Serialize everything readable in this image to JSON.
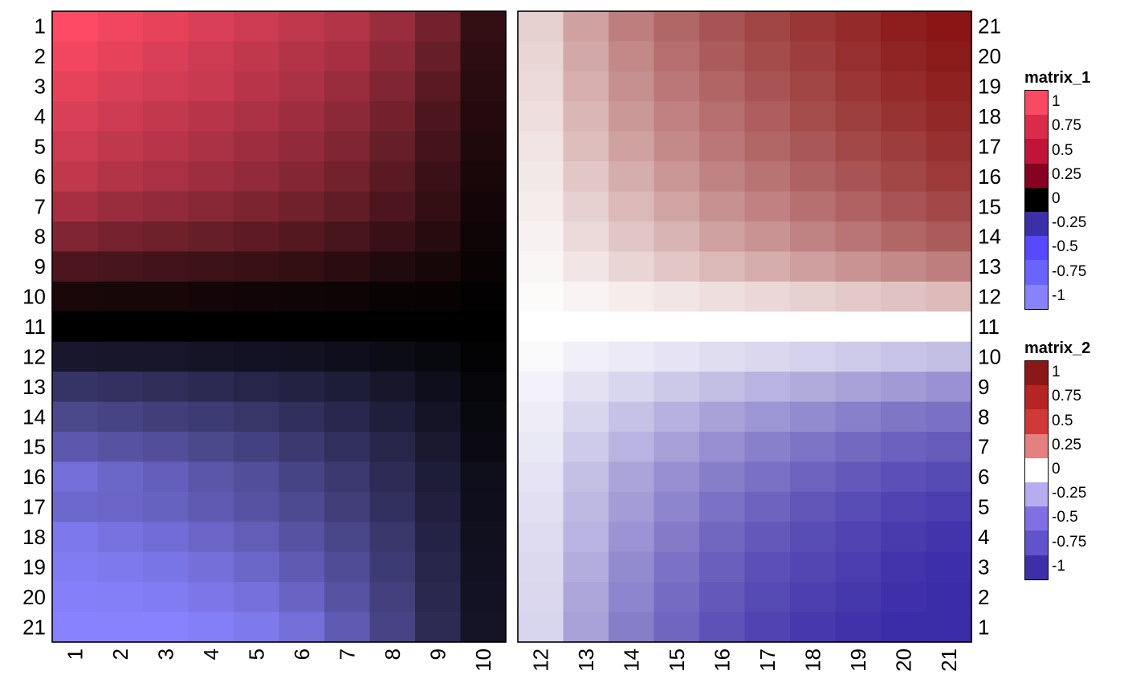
{
  "chart_data": {
    "type": "heatmap",
    "heatmaps": [
      {
        "name": "matrix_1",
        "row_labels": [
          "1",
          "2",
          "3",
          "4",
          "5",
          "6",
          "7",
          "8",
          "9",
          "10",
          "11",
          "12",
          "13",
          "14",
          "15",
          "16",
          "17",
          "18",
          "19",
          "20",
          "21"
        ],
        "row_label_side": "left",
        "column_labels": [
          "1",
          "2",
          "3",
          "4",
          "5",
          "6",
          "7",
          "8",
          "9",
          "10"
        ],
        "values": [
          [
            1.0,
            0.95,
            0.9,
            0.85,
            0.8,
            0.75,
            0.7,
            0.6,
            0.45,
            0.2
          ],
          [
            0.95,
            0.9,
            0.85,
            0.8,
            0.75,
            0.7,
            0.65,
            0.55,
            0.4,
            0.18
          ],
          [
            0.9,
            0.85,
            0.82,
            0.78,
            0.72,
            0.67,
            0.6,
            0.5,
            0.35,
            0.16
          ],
          [
            0.85,
            0.8,
            0.76,
            0.72,
            0.67,
            0.62,
            0.55,
            0.45,
            0.3,
            0.14
          ],
          [
            0.8,
            0.75,
            0.72,
            0.67,
            0.62,
            0.57,
            0.5,
            0.4,
            0.27,
            0.12
          ],
          [
            0.75,
            0.7,
            0.66,
            0.62,
            0.57,
            0.52,
            0.45,
            0.35,
            0.23,
            0.1
          ],
          [
            0.65,
            0.6,
            0.57,
            0.53,
            0.49,
            0.44,
            0.38,
            0.3,
            0.2,
            0.08
          ],
          [
            0.5,
            0.46,
            0.43,
            0.4,
            0.37,
            0.33,
            0.28,
            0.22,
            0.15,
            0.06
          ],
          [
            0.3,
            0.28,
            0.26,
            0.24,
            0.22,
            0.2,
            0.17,
            0.13,
            0.09,
            0.04
          ],
          [
            0.1,
            0.09,
            0.09,
            0.08,
            0.07,
            0.06,
            0.05,
            0.04,
            0.03,
            0.01
          ],
          [
            0,
            0,
            0,
            0,
            0,
            0,
            0,
            0,
            0,
            0
          ],
          [
            -0.18,
            -0.17,
            -0.16,
            -0.15,
            -0.14,
            -0.13,
            -0.11,
            -0.09,
            -0.06,
            -0.02
          ],
          [
            -0.4,
            -0.38,
            -0.35,
            -0.32,
            -0.29,
            -0.26,
            -0.22,
            -0.17,
            -0.11,
            -0.04
          ],
          [
            -0.55,
            -0.52,
            -0.48,
            -0.45,
            -0.41,
            -0.36,
            -0.3,
            -0.23,
            -0.15,
            -0.06
          ],
          [
            -0.68,
            -0.64,
            -0.6,
            -0.55,
            -0.5,
            -0.44,
            -0.37,
            -0.29,
            -0.19,
            -0.08
          ],
          [
            -0.85,
            -0.79,
            -0.73,
            -0.66,
            -0.6,
            -0.52,
            -0.44,
            -0.34,
            -0.22,
            -0.1
          ],
          [
            -0.8,
            -0.78,
            -0.75,
            -0.7,
            -0.64,
            -0.57,
            -0.48,
            -0.37,
            -0.24,
            -0.11
          ],
          [
            -0.92,
            -0.88,
            -0.84,
            -0.78,
            -0.72,
            -0.64,
            -0.54,
            -0.42,
            -0.27,
            -0.12
          ],
          [
            -0.95,
            -0.93,
            -0.9,
            -0.85,
            -0.79,
            -0.7,
            -0.59,
            -0.45,
            -0.29,
            -0.13
          ],
          [
            -0.98,
            -0.97,
            -0.95,
            -0.91,
            -0.86,
            -0.77,
            -0.64,
            -0.49,
            -0.31,
            -0.14
          ],
          [
            -1.0,
            -1.0,
            -1.0,
            -0.97,
            -0.93,
            -0.85,
            -0.7,
            -0.52,
            -0.33,
            -0.15
          ]
        ]
      },
      {
        "name": "matrix_2",
        "row_labels": [
          "21",
          "20",
          "19",
          "18",
          "17",
          "16",
          "15",
          "14",
          "13",
          "12",
          "11",
          "10",
          "9",
          "8",
          "7",
          "6",
          "5",
          "4",
          "3",
          "2",
          "1"
        ],
        "row_label_side": "right",
        "column_labels": [
          "12",
          "13",
          "14",
          "15",
          "16",
          "17",
          "18",
          "19",
          "20",
          "21"
        ],
        "values": [
          [
            0.2,
            0.4,
            0.55,
            0.65,
            0.73,
            0.8,
            0.86,
            0.91,
            0.96,
            1.0
          ],
          [
            0.18,
            0.37,
            0.51,
            0.62,
            0.7,
            0.77,
            0.83,
            0.89,
            0.94,
            0.98
          ],
          [
            0.16,
            0.34,
            0.48,
            0.58,
            0.66,
            0.73,
            0.8,
            0.86,
            0.91,
            0.95
          ],
          [
            0.14,
            0.31,
            0.44,
            0.54,
            0.62,
            0.69,
            0.76,
            0.82,
            0.87,
            0.92
          ],
          [
            0.12,
            0.28,
            0.4,
            0.5,
            0.58,
            0.65,
            0.72,
            0.78,
            0.83,
            0.88
          ],
          [
            0.1,
            0.24,
            0.35,
            0.45,
            0.53,
            0.6,
            0.67,
            0.73,
            0.79,
            0.84
          ],
          [
            0.08,
            0.2,
            0.3,
            0.39,
            0.47,
            0.54,
            0.61,
            0.67,
            0.73,
            0.78
          ],
          [
            0.06,
            0.16,
            0.25,
            0.32,
            0.4,
            0.46,
            0.53,
            0.59,
            0.65,
            0.7
          ],
          [
            0.04,
            0.11,
            0.18,
            0.24,
            0.3,
            0.35,
            0.41,
            0.46,
            0.51,
            0.55
          ],
          [
            0.02,
            0.05,
            0.08,
            0.11,
            0.14,
            0.17,
            0.2,
            0.23,
            0.26,
            0.29
          ],
          [
            0,
            0,
            0,
            0,
            0,
            0,
            0,
            0,
            0,
            0
          ],
          [
            -0.03,
            -0.07,
            -0.1,
            -0.13,
            -0.16,
            -0.19,
            -0.22,
            -0.25,
            -0.28,
            -0.31
          ],
          [
            -0.06,
            -0.14,
            -0.2,
            -0.26,
            -0.31,
            -0.36,
            -0.4,
            -0.44,
            -0.48,
            -0.52
          ],
          [
            -0.09,
            -0.2,
            -0.29,
            -0.37,
            -0.44,
            -0.5,
            -0.55,
            -0.6,
            -0.65,
            -0.68
          ],
          [
            -0.11,
            -0.25,
            -0.36,
            -0.45,
            -0.53,
            -0.6,
            -0.66,
            -0.71,
            -0.75,
            -0.78
          ],
          [
            -0.13,
            -0.3,
            -0.43,
            -0.53,
            -0.61,
            -0.68,
            -0.74,
            -0.79,
            -0.83,
            -0.86
          ],
          [
            -0.15,
            -0.33,
            -0.47,
            -0.58,
            -0.67,
            -0.74,
            -0.8,
            -0.85,
            -0.89,
            -0.92
          ],
          [
            -0.17,
            -0.36,
            -0.51,
            -0.63,
            -0.72,
            -0.79,
            -0.85,
            -0.89,
            -0.93,
            -0.96
          ],
          [
            -0.18,
            -0.39,
            -0.55,
            -0.67,
            -0.76,
            -0.83,
            -0.88,
            -0.92,
            -0.96,
            -0.99
          ],
          [
            -0.19,
            -0.42,
            -0.58,
            -0.7,
            -0.79,
            -0.86,
            -0.91,
            -0.95,
            -0.98,
            -1.0
          ],
          [
            -0.2,
            -0.44,
            -0.61,
            -0.73,
            -0.82,
            -0.89,
            -0.94,
            -0.97,
            -1.0,
            -1.0
          ]
        ]
      }
    ],
    "legends": [
      {
        "title": "matrix_1",
        "labels": [
          "1",
          "0.75",
          "0.5",
          "0.25",
          "0",
          "-0.25",
          "-0.5",
          "-0.75",
          "-1"
        ],
        "colors": [
          "#f94a64",
          "#da2c4a",
          "#c0143a",
          "#850222",
          "#000000",
          "#3b30aa",
          "#574afd",
          "#6a64fd",
          "#8883fc"
        ]
      },
      {
        "title": "matrix_2",
        "labels": [
          "1",
          "0.75",
          "0.5",
          "0.25",
          "0",
          "-0.25",
          "-0.5",
          "-0.75",
          "-1"
        ],
        "colors": [
          "#8b1818",
          "#b72424",
          "#d13838",
          "#e38080",
          "#ffffff",
          "#b6acf0",
          "#8170e4",
          "#6053cb",
          "#3d2fa7"
        ]
      }
    ],
    "colorscales": {
      "matrix_1": {
        "pos": "#ff4a65",
        "zero": "#000000",
        "neg": "#8882ff"
      },
      "matrix_2": {
        "pos": "#891515",
        "zero": "#ffffff",
        "neg": "#3b2ca8"
      }
    },
    "xlabel": "",
    "ylabel": "",
    "title": ""
  }
}
